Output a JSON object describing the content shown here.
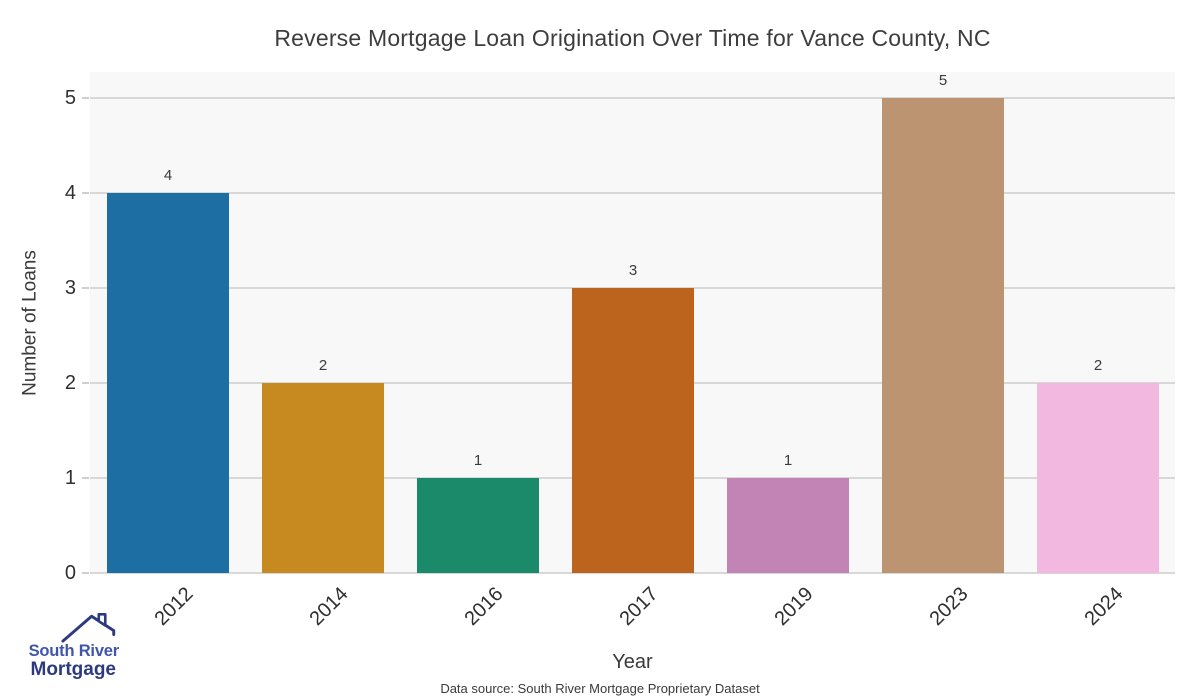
{
  "title": "Reverse Mortgage Loan Origination Over Time for Vance County, NC",
  "source_note": "Data source: South River Mortgage Proprietary Dataset",
  "logo": {
    "line1": "South River",
    "line2": "Mortgage",
    "color_light": "#4156a8",
    "color_dark": "#2e3a80"
  },
  "chart_data": {
    "type": "bar",
    "title": "Reverse Mortgage Loan Origination Over Time for Vance County, NC",
    "categories": [
      "2012",
      "2014",
      "2016",
      "2017",
      "2019",
      "2023",
      "2024"
    ],
    "values": [
      4,
      2,
      1,
      3,
      1,
      5,
      2
    ],
    "bar_colors": [
      "#1d6fa3",
      "#c78a21",
      "#1b8a6b",
      "#bc631e",
      "#c184b5",
      "#bd9471",
      "#f2b8df"
    ],
    "bar_value_labels": [
      "4",
      "2",
      "1",
      "3",
      "1",
      "5",
      "2"
    ],
    "xlabel": "Year",
    "ylabel": "Number of Loans",
    "yticks": [
      0,
      1,
      2,
      3,
      4,
      5
    ],
    "ylim": [
      0,
      5.27
    ],
    "grid": true,
    "legend": false,
    "plot_bg": "#f8f8f8",
    "grid_color": "#d8d8d8"
  }
}
